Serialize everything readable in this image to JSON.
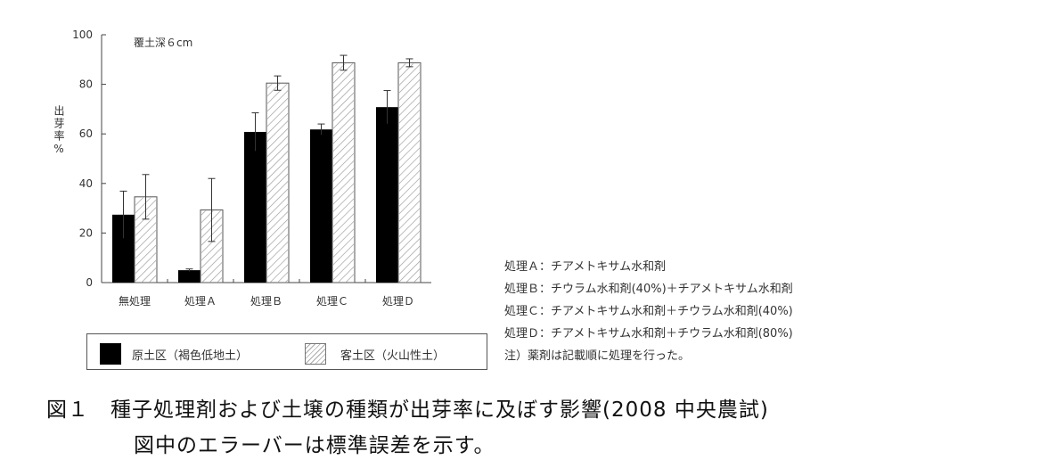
{
  "chart_data": {
    "type": "bar",
    "annotation": "覆土深６cm",
    "ylabel": "出芽率%",
    "xlabel": "",
    "ylim": [
      0,
      100
    ],
    "yticks": [
      0,
      20,
      40,
      60,
      80,
      100
    ],
    "grid": false,
    "legend_position": "bottom",
    "categories": [
      "無処理",
      "処理Ａ",
      "処理Ｂ",
      "処理Ｃ",
      "処理Ｄ"
    ],
    "series": [
      {
        "name": "原土区（褐色低地土）",
        "fill": "solid",
        "color": "#000000",
        "values": [
          27.4,
          5.0,
          60.8,
          61.8,
          70.8
        ],
        "error": [
          9.5,
          0.5,
          7.7,
          2.2,
          6.7
        ]
      },
      {
        "name": "客土区（火山性土）",
        "fill": "hatched",
        "color": "#ffffff",
        "values": [
          34.6,
          29.3,
          80.5,
          88.7,
          88.7
        ],
        "error": [
          9.0,
          12.7,
          2.9,
          3.0,
          1.6
        ]
      }
    ]
  },
  "notes": [
    "処理Ａ：チアメトキサム水和剤",
    "処理Ｂ：チウラム水和剤(40%)＋チアメトキサム水和剤",
    "処理Ｃ：チアメトキサム水和剤＋チウラム水和剤(40%)",
    "処理Ｄ：チアメトキサム水和剤＋チウラム水和剤(80%)",
    "注）薬剤は記載順に処理を行った。"
  ],
  "caption": {
    "line1": "図１　種子処理剤および土壌の種類が出芽率に及ぼす影響(2008 中央農試)",
    "line2": "図中のエラーバーは標準誤差を示す。"
  }
}
